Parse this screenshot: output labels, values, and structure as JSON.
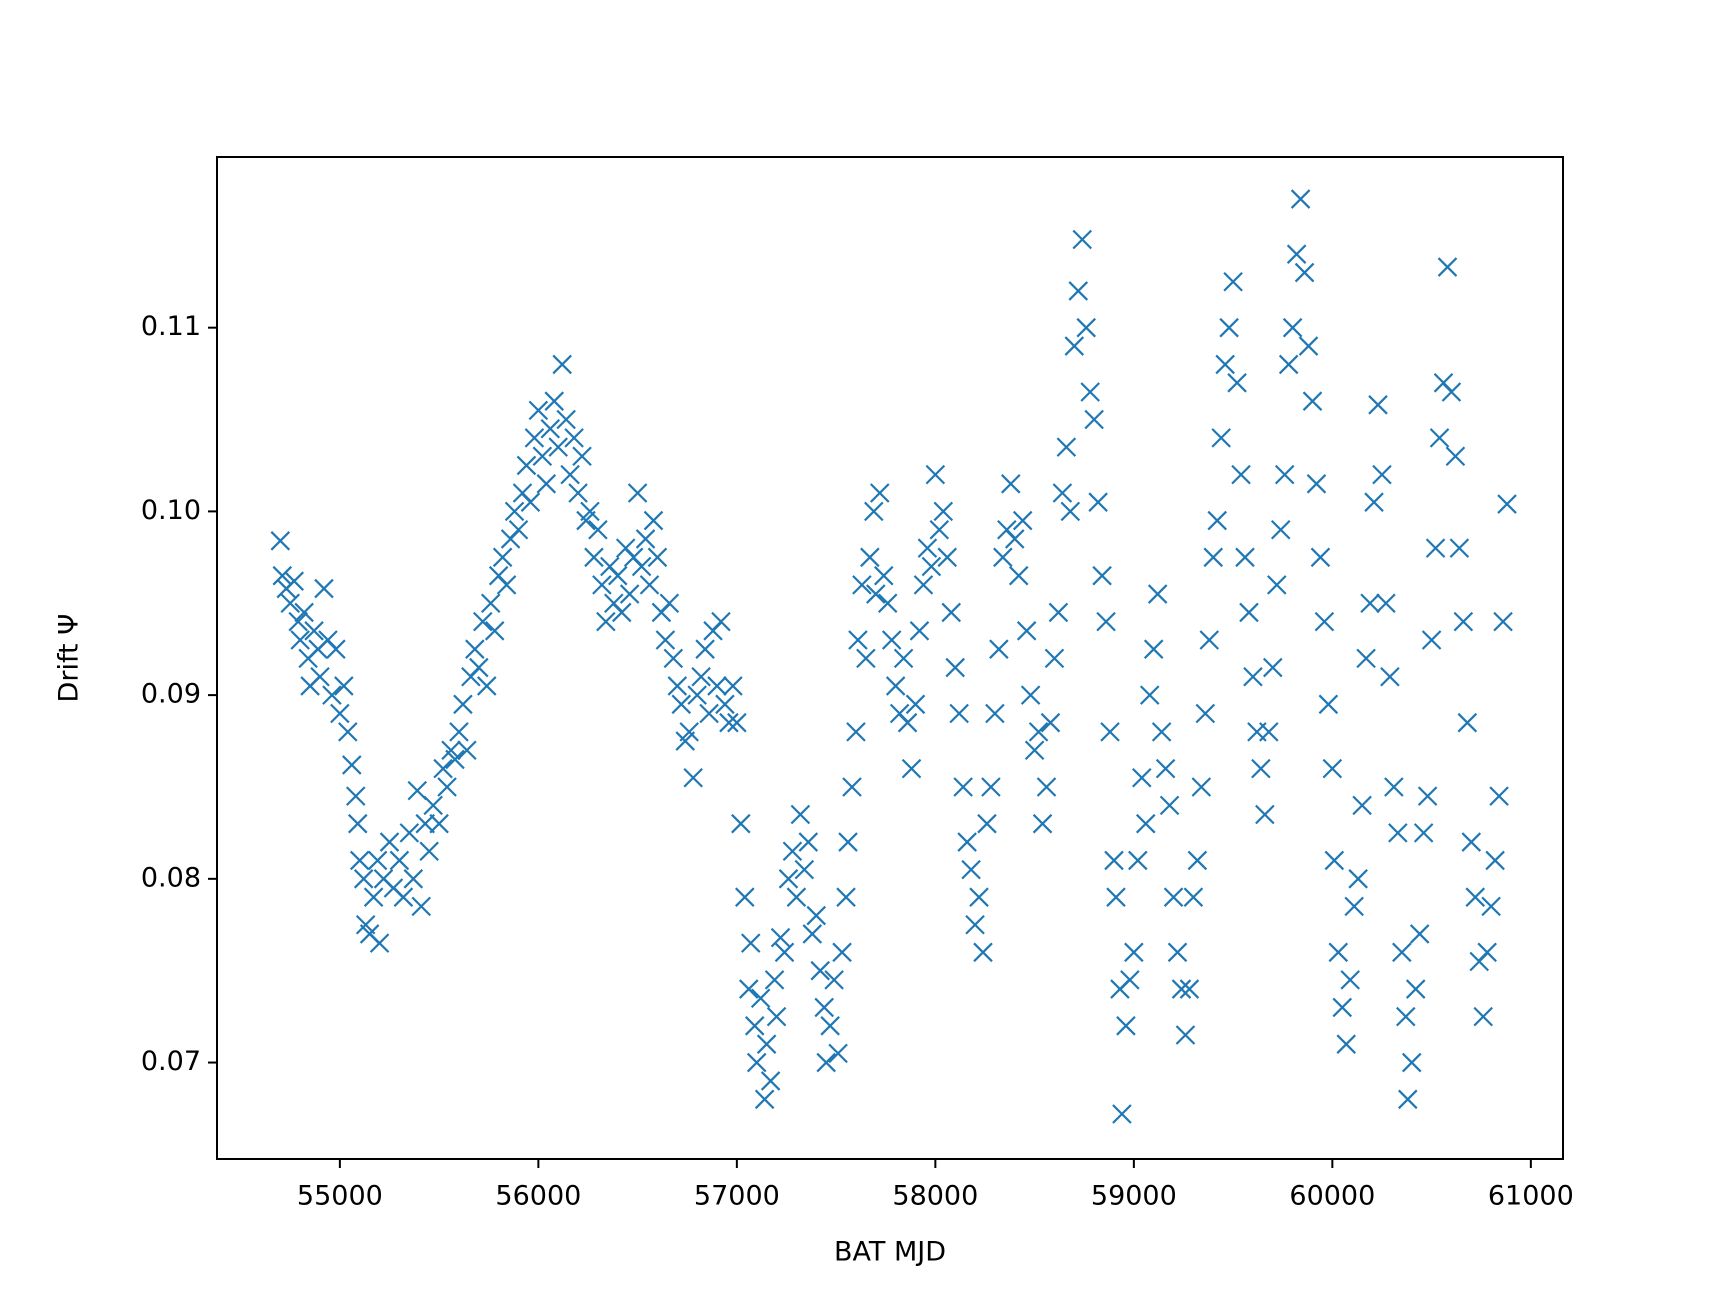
{
  "chart_data": {
    "type": "scatter",
    "x_label": "BAT MJD",
    "y_label": "Drift Ψ",
    "color": "#1f77b4",
    "marker": "x",
    "xlim": [
      54381,
      61162
    ],
    "ylim": [
      0.06475,
      0.11929
    ],
    "xticks": [
      55000,
      56000,
      57000,
      58000,
      59000,
      60000,
      61000
    ],
    "yticks": [
      0.07,
      0.08,
      0.09,
      {
        "value": 0.1,
        "label": "0.10"
      },
      0.11
    ],
    "x": [
      54700,
      54710,
      54730,
      54750,
      54770,
      54790,
      54800,
      54820,
      54840,
      54850,
      54870,
      54890,
      54900,
      54920,
      54940,
      54960,
      54980,
      55000,
      55020,
      55040,
      55060,
      55080,
      55090,
      55100,
      55120,
      55130,
      55150,
      55170,
      55190,
      55200,
      55220,
      55250,
      55270,
      55300,
      55320,
      55350,
      55370,
      55390,
      55410,
      55430,
      55450,
      55470,
      55500,
      55520,
      55540,
      55560,
      55580,
      55600,
      55620,
      55640,
      55660,
      55680,
      55700,
      55720,
      55740,
      55760,
      55780,
      55800,
      55820,
      55840,
      55860,
      55880,
      55900,
      55920,
      55940,
      55960,
      55980,
      56000,
      56020,
      56040,
      56060,
      56080,
      56100,
      56120,
      56140,
      56160,
      56180,
      56200,
      56220,
      56240,
      56260,
      56280,
      56300,
      56320,
      56340,
      56360,
      56380,
      56400,
      56420,
      56440,
      56460,
      56480,
      56500,
      56520,
      56540,
      56560,
      56580,
      56600,
      56620,
      56640,
      56660,
      56680,
      56700,
      56720,
      56740,
      56760,
      56780,
      56800,
      56820,
      56840,
      56860,
      56880,
      56900,
      56920,
      56940,
      56960,
      56980,
      57000,
      57020,
      57040,
      57060,
      57070,
      57090,
      57100,
      57120,
      57140,
      57150,
      57170,
      57190,
      57200,
      57220,
      57240,
      57260,
      57280,
      57300,
      57320,
      57340,
      57360,
      57380,
      57400,
      57420,
      57440,
      57450,
      57470,
      57490,
      57510,
      57530,
      57550,
      57560,
      57580,
      57600,
      57610,
      57630,
      57650,
      57670,
      57690,
      57700,
      57720,
      57740,
      57760,
      57780,
      57800,
      57820,
      57840,
      57860,
      57880,
      57900,
      57920,
      57940,
      57960,
      57980,
      58000,
      58020,
      58040,
      58060,
      58080,
      58100,
      58120,
      58140,
      58160,
      58180,
      58200,
      58220,
      58240,
      58260,
      58280,
      58300,
      58320,
      58340,
      58360,
      58380,
      58400,
      58420,
      58440,
      58460,
      58480,
      58500,
      58520,
      58540,
      58560,
      58580,
      58600,
      58620,
      58640,
      58660,
      58680,
      58700,
      58720,
      58740,
      58760,
      58780,
      58800,
      58820,
      58840,
      58860,
      58880,
      58900,
      58910,
      58930,
      58940,
      58960,
      58980,
      59000,
      59020,
      59040,
      59060,
      59080,
      59100,
      59120,
      59140,
      59160,
      59180,
      59200,
      59220,
      59240,
      59260,
      59280,
      59300,
      59320,
      59340,
      59360,
      59380,
      59400,
      59420,
      59440,
      59460,
      59480,
      59500,
      59520,
      59540,
      59560,
      59580,
      59600,
      59620,
      59640,
      59660,
      59680,
      59700,
      59720,
      59740,
      59760,
      59780,
      59800,
      59820,
      59840,
      59860,
      59880,
      59900,
      59920,
      59940,
      59960,
      59980,
      60000,
      60010,
      60030,
      60050,
      60070,
      60090,
      60110,
      60130,
      60150,
      60170,
      60190,
      60210,
      60230,
      60250,
      60270,
      60290,
      60310,
      60330,
      60350,
      60370,
      60380,
      60400,
      60420,
      60440,
      60460,
      60480,
      60500,
      60520,
      60540,
      60560,
      60580,
      60600,
      60620,
      60640,
      60660,
      60680,
      60700,
      60720,
      60740,
      60760,
      60780,
      60800,
      60820,
      60840,
      60860,
      60880
    ],
    "values": [
      0.0984,
      0.0965,
      0.0958,
      0.095,
      0.0962,
      0.094,
      0.093,
      0.0945,
      0.092,
      0.0905,
      0.0935,
      0.0925,
      0.091,
      0.0958,
      0.093,
      0.09,
      0.0925,
      0.089,
      0.0905,
      0.088,
      0.0862,
      0.0845,
      0.083,
      0.081,
      0.08,
      0.0775,
      0.077,
      0.079,
      0.081,
      0.0765,
      0.08,
      0.082,
      0.0795,
      0.081,
      0.079,
      0.0825,
      0.08,
      0.0848,
      0.0785,
      0.083,
      0.0815,
      0.084,
      0.083,
      0.086,
      0.085,
      0.087,
      0.0865,
      0.088,
      0.0895,
      0.087,
      0.091,
      0.0925,
      0.0915,
      0.094,
      0.0905,
      0.095,
      0.0935,
      0.0965,
      0.0975,
      0.096,
      0.0985,
      0.1,
      0.099,
      0.101,
      0.1025,
      0.1005,
      0.104,
      0.1055,
      0.103,
      0.1015,
      0.1045,
      0.106,
      0.1035,
      0.108,
      0.105,
      0.102,
      0.104,
      0.101,
      0.103,
      0.0995,
      0.1,
      0.0975,
      0.099,
      0.096,
      0.094,
      0.097,
      0.095,
      0.0965,
      0.0945,
      0.098,
      0.0955,
      0.0975,
      0.101,
      0.097,
      0.0985,
      0.096,
      0.0995,
      0.0975,
      0.0945,
      0.093,
      0.095,
      0.092,
      0.0905,
      0.0895,
      0.0875,
      0.088,
      0.0855,
      0.09,
      0.091,
      0.0925,
      0.089,
      0.0935,
      0.0905,
      0.094,
      0.0895,
      0.0885,
      0.0905,
      0.0885,
      0.083,
      0.079,
      0.074,
      0.0765,
      0.072,
      0.07,
      0.0735,
      0.068,
      0.071,
      0.069,
      0.0745,
      0.0725,
      0.0768,
      0.076,
      0.08,
      0.0815,
      0.079,
      0.0835,
      0.0805,
      0.082,
      0.077,
      0.078,
      0.075,
      0.073,
      0.07,
      0.072,
      0.0745,
      0.0705,
      0.076,
      0.079,
      0.082,
      0.085,
      0.088,
      0.093,
      0.096,
      0.092,
      0.0975,
      0.1,
      0.0955,
      0.101,
      0.0965,
      0.095,
      0.093,
      0.0905,
      0.089,
      0.092,
      0.0885,
      0.086,
      0.0895,
      0.0935,
      0.096,
      0.098,
      0.097,
      0.102,
      0.099,
      0.1,
      0.0975,
      0.0945,
      0.0915,
      0.089,
      0.085,
      0.082,
      0.0805,
      0.0775,
      0.079,
      0.076,
      0.083,
      0.085,
      0.089,
      0.0925,
      0.0975,
      0.099,
      0.1015,
      0.0985,
      0.0965,
      0.0995,
      0.0935,
      0.09,
      0.087,
      0.088,
      0.083,
      0.085,
      0.0885,
      0.092,
      0.0945,
      0.101,
      0.1035,
      0.1,
      0.109,
      0.112,
      0.1148,
      0.11,
      0.1065,
      0.105,
      0.1005,
      0.0965,
      0.094,
      0.088,
      0.081,
      0.079,
      0.074,
      0.0672,
      0.072,
      0.0745,
      0.076,
      0.081,
      0.0855,
      0.083,
      0.09,
      0.0925,
      0.0955,
      0.088,
      0.086,
      0.084,
      0.079,
      0.076,
      0.074,
      0.0715,
      0.074,
      0.079,
      0.081,
      0.085,
      0.089,
      0.093,
      0.0975,
      0.0995,
      0.104,
      0.108,
      0.11,
      0.1125,
      0.107,
      0.102,
      0.0975,
      0.0945,
      0.091,
      0.088,
      0.086,
      0.0835,
      0.088,
      0.0915,
      0.096,
      0.099,
      0.102,
      0.108,
      0.11,
      0.114,
      0.117,
      0.113,
      0.109,
      0.106,
      0.1015,
      0.0975,
      0.094,
      0.0895,
      0.086,
      0.081,
      0.076,
      0.073,
      0.071,
      0.0745,
      0.0785,
      0.08,
      0.084,
      0.092,
      0.095,
      0.1005,
      0.1058,
      0.102,
      0.095,
      0.091,
      0.085,
      0.0825,
      0.076,
      0.0725,
      0.068,
      0.07,
      0.074,
      0.077,
      0.0825,
      0.0845,
      0.093,
      0.098,
      0.104,
      0.107,
      0.1133,
      0.1065,
      0.103,
      0.098,
      0.094,
      0.0885,
      0.082,
      0.079,
      0.0755,
      0.0725,
      0.076,
      0.0785,
      0.081,
      0.0845,
      0.094,
      0.1004
    ]
  }
}
